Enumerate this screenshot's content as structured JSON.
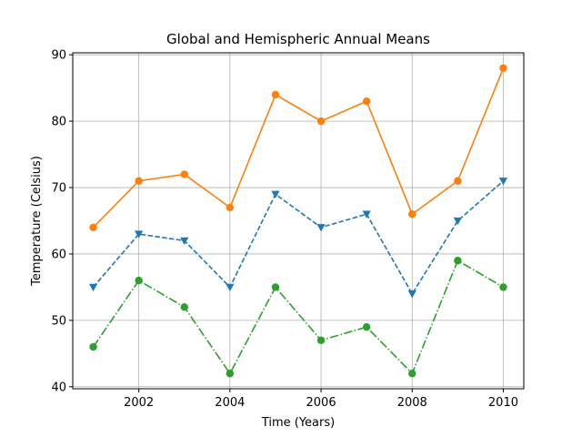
{
  "chart_data": {
    "type": "line",
    "title": "Global and Hemispheric Annual Means",
    "xlabel": "Time (Years)",
    "ylabel": "Temperature (Celsius)",
    "x": [
      2001,
      2002,
      2003,
      2004,
      2005,
      2006,
      2007,
      2008,
      2009,
      2010
    ],
    "xlim": [
      2000.55,
      2010.45
    ],
    "ylim": [
      39.7,
      90.3
    ],
    "xticks": [
      2002,
      2004,
      2006,
      2008,
      2010
    ],
    "yticks": [
      40,
      50,
      60,
      70,
      80,
      90
    ],
    "grid": true,
    "legend": "none",
    "series": [
      {
        "values": [
          64,
          71,
          72,
          67,
          84,
          80,
          83,
          66,
          71,
          88
        ],
        "color": "#ff7f0e",
        "linestyle": "solid",
        "marker": "circle"
      },
      {
        "values": [
          55,
          63,
          62,
          55,
          69,
          64,
          66,
          54,
          65,
          71
        ],
        "color": "#1f77b4",
        "linestyle": "dashed",
        "marker": "triangle-down"
      },
      {
        "values": [
          46,
          56,
          52,
          42,
          55,
          47,
          49,
          42,
          59,
          55
        ],
        "color": "#2ca02c",
        "linestyle": "dashdot",
        "marker": "circle"
      }
    ]
  }
}
